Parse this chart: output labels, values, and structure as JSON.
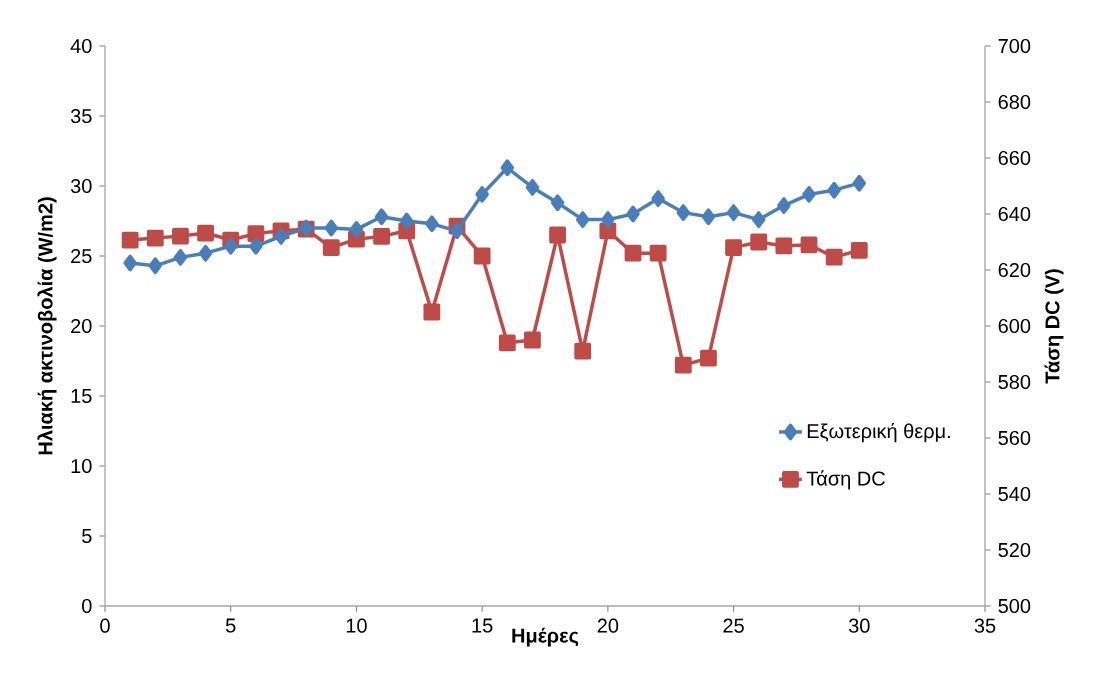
{
  "chart_data": {
    "type": "line",
    "x": [
      1,
      2,
      3,
      4,
      5,
      6,
      7,
      8,
      9,
      10,
      11,
      12,
      13,
      14,
      15,
      16,
      17,
      18,
      19,
      20,
      21,
      22,
      23,
      24,
      25,
      26,
      27,
      28,
      29,
      30
    ],
    "series": [
      {
        "name": "Εξωτερική θερμ.",
        "color": "#4a7ebb",
        "marker": "diamond",
        "values": [
          24.5,
          24.3,
          24.9,
          25.2,
          25.7,
          25.7,
          26.4,
          27.0,
          27.0,
          26.9,
          27.8,
          27.5,
          27.3,
          26.8,
          29.4,
          31.3,
          29.9,
          28.8,
          27.6,
          27.6,
          28.0,
          29.1,
          28.1,
          27.8,
          28.1,
          27.6,
          28.6,
          29.4,
          29.7,
          30.2
        ]
      },
      {
        "name": "Τάση DC",
        "color": "#be4b48",
        "marker": "square",
        "axis": "y2",
        "values": [
          630.7,
          631.4,
          632.1,
          633.2,
          630.7,
          633,
          634,
          634.6,
          628,
          631,
          632,
          634,
          605,
          635.7,
          625,
          594,
          595,
          632.5,
          591,
          634,
          626,
          626,
          586,
          588.5,
          628,
          630,
          628.6,
          629,
          624.6,
          627
        ]
      }
    ],
    "xlabel": "Ημέρες",
    "ylabel": "Ηλιακή ακτινοβολία (W/m2)",
    "y2label": "Τάση DC (V)",
    "xlim": [
      0,
      35
    ],
    "xticks": [
      0,
      5,
      10,
      15,
      20,
      25,
      30,
      35
    ],
    "ylim": [
      0,
      40
    ],
    "yticks": [
      0,
      5,
      10,
      15,
      20,
      25,
      30,
      35,
      40
    ],
    "y2lim": [
      500,
      700
    ],
    "y2ticks": [
      500,
      520,
      540,
      560,
      580,
      600,
      620,
      640,
      660,
      680,
      700
    ],
    "legend": "right",
    "grid": false,
    "line_style": "solid"
  }
}
